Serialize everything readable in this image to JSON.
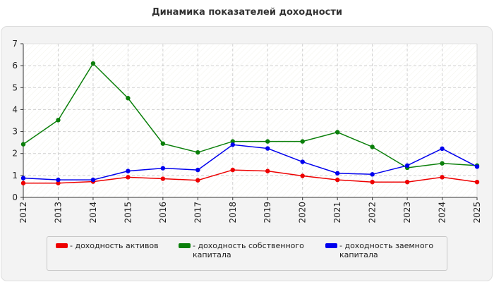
{
  "chart_data": {
    "type": "line",
    "title": "Динамика показателей доходности",
    "x": [
      "2012",
      "2013",
      "2014",
      "2015",
      "2016",
      "2017",
      "2018",
      "2019",
      "2020",
      "2021",
      "2022",
      "2023",
      "2024",
      "2025"
    ],
    "ylim": [
      0,
      7
    ],
    "yticks": [
      "0",
      "1",
      "2",
      "3",
      "4",
      "5",
      "6",
      "7"
    ],
    "grid": true,
    "legend_position": "bottom",
    "series": [
      {
        "name": "- доходность активов",
        "color": "#ee0000",
        "values": [
          0.65,
          0.65,
          0.72,
          0.92,
          0.85,
          0.78,
          1.25,
          1.2,
          0.98,
          0.8,
          0.7,
          0.7,
          0.92,
          0.7
        ]
      },
      {
        "name": "- доходность собственного\nкапитала",
        "color": "#0a7f0a",
        "values": [
          2.42,
          3.52,
          6.1,
          4.52,
          2.45,
          2.05,
          2.55,
          2.55,
          2.55,
          2.97,
          2.3,
          1.35,
          1.55,
          1.45
        ]
      },
      {
        "name": "- доходность заемного\nкапитала",
        "color": "#0000ee",
        "values": [
          0.88,
          0.8,
          0.8,
          1.2,
          1.33,
          1.25,
          2.4,
          2.23,
          1.62,
          1.1,
          1.05,
          1.45,
          2.22,
          1.4
        ]
      }
    ]
  }
}
